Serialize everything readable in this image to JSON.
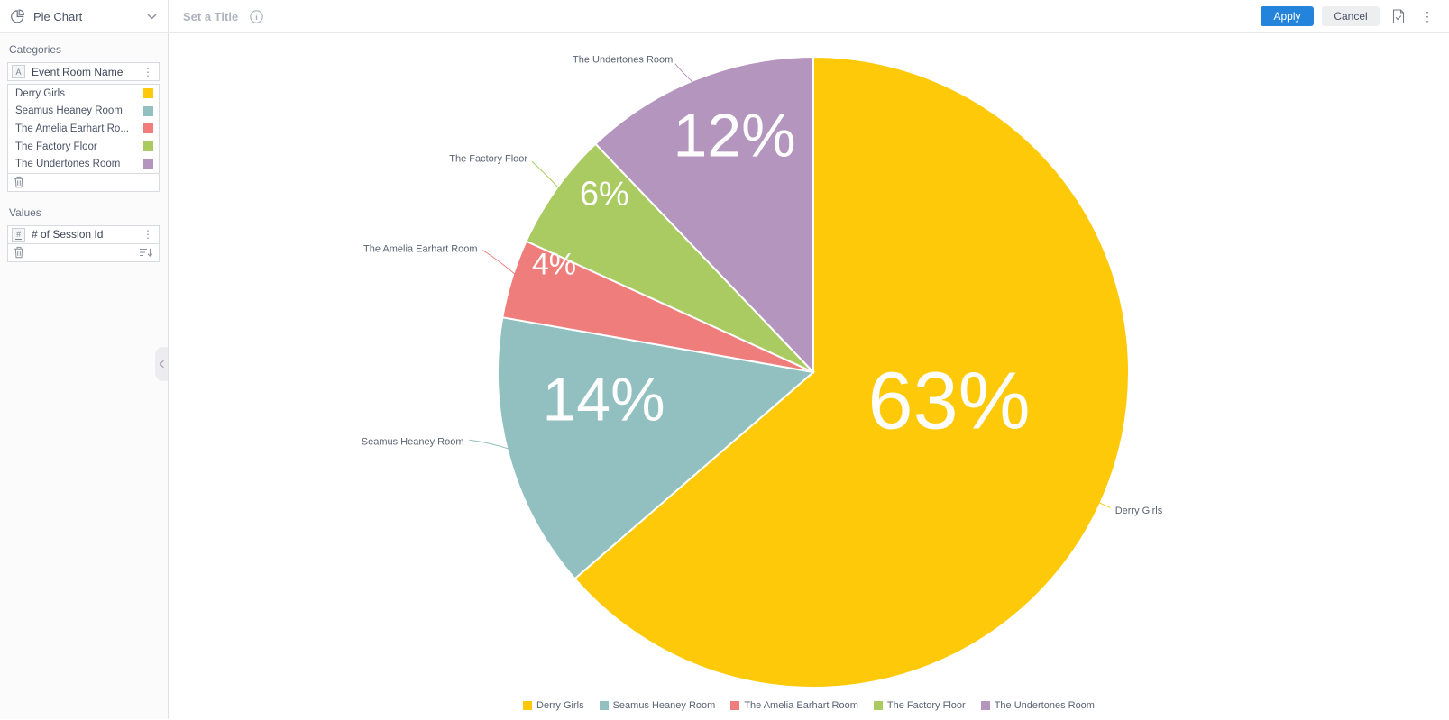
{
  "topbar": {
    "widget_type": "Pie Chart",
    "title_placeholder": "Set a Title",
    "apply_label": "Apply",
    "cancel_label": "Cancel"
  },
  "sidebar": {
    "categories": {
      "section_label": "Categories",
      "field": {
        "type_letter": "A",
        "name": "Event Room Name"
      },
      "items": [
        {
          "label": "Derry Girls",
          "color": "#FDC908"
        },
        {
          "label": "Seamus Heaney Room",
          "color": "#92C0C0"
        },
        {
          "label": "The Amelia Earhart Ro...",
          "color": "#EE7D7B"
        },
        {
          "label": "The Factory Floor",
          "color": "#A9CB61"
        },
        {
          "label": "The Undertones Room",
          "color": "#B495BD"
        }
      ]
    },
    "values": {
      "section_label": "Values",
      "field": {
        "type_symbol": "#",
        "name": "# of Session Id"
      }
    }
  },
  "chart_data": {
    "type": "pie",
    "title": "",
    "legend_position": "bottom",
    "direction": "clockwise",
    "start_angle_deg": 0,
    "slices": [
      {
        "label": "Derry Girls",
        "percent": 63,
        "value_label": "63%",
        "color": "#FDC908"
      },
      {
        "label": "Seamus Heaney Room",
        "percent": 14,
        "value_label": "14%",
        "color": "#92C0C0"
      },
      {
        "label": "The Amelia Earhart Room",
        "percent": 4,
        "value_label": "4%",
        "color": "#EE7D7B"
      },
      {
        "label": "The Factory Floor",
        "percent": 6,
        "value_label": "6%",
        "color": "#A9CB61"
      },
      {
        "label": "The Undertones Room",
        "percent": 12,
        "value_label": "12%",
        "color": "#B495BD"
      }
    ]
  },
  "icons": [
    "pie-chart-icon",
    "chevron-down-icon",
    "info-icon",
    "export-report-icon",
    "kebab-menu-icon",
    "trash-icon",
    "sort-icon",
    "collapse-sidebar-icon",
    "text-attribute-icon",
    "numeric-attribute-icon"
  ],
  "colors": {
    "accent": "#2484DB",
    "cancel_bg": "#ECEEF0",
    "sidebar_bg": "#FBFBFC"
  }
}
